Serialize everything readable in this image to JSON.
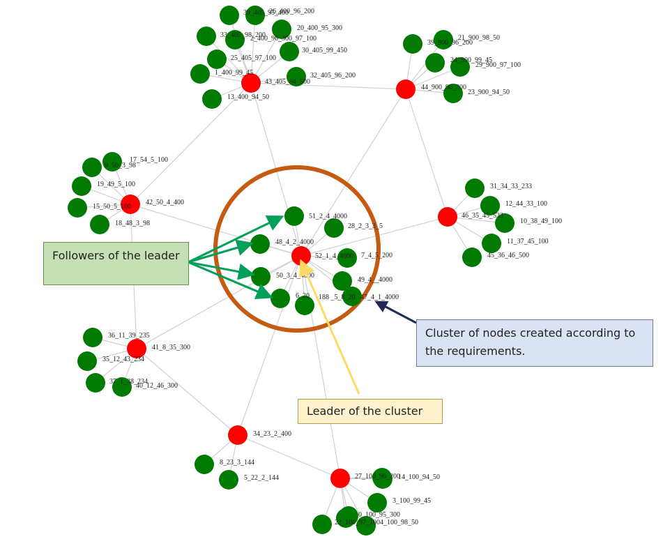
{
  "colors": {
    "leader": "#ff0000",
    "follower": "#007a00",
    "edge": "#d0d0d0",
    "cluster_ring": "#c55a11",
    "arrow_green": "#00a05a",
    "arrow_yellow": "#ffd965",
    "arrow_navy": "#1f2a55"
  },
  "callouts": {
    "followers": "Followers of the leader",
    "cluster": "Cluster of nodes created according to the requirements.",
    "leader": "Leader of the cluster"
  },
  "nodes": [
    {
      "id": "52_1_4_4000",
      "role": "leader",
      "label": "52_1_4_4000"
    },
    {
      "id": "51_2_4_4000",
      "role": "follower",
      "label": "51_2_4_4000"
    },
    {
      "id": "28_2_3_3_5",
      "role": "follower",
      "label": "28_2_3_3_5"
    },
    {
      "id": "48_4_2_4000",
      "role": "follower",
      "label": "48_4_2_4000"
    },
    {
      "id": "7_4_5_200",
      "role": "follower",
      "label": "7_4_5_200"
    },
    {
      "id": "50_3_4_4000",
      "role": "follower",
      "label": "50_3_4_4000"
    },
    {
      "id": "49_4_1_4000",
      "role": "follower",
      "label": "49_4__4000"
    },
    {
      "id": "6_20_188",
      "role": "follower",
      "label": "6_20"
    },
    {
      "id": "5_5_8_20",
      "role": "follower",
      "label": "188 _5_8_20"
    },
    {
      "id": "47_4_1_4000",
      "role": "follower",
      "label": "47_4_1_4000"
    },
    {
      "id": "43_405_94_500",
      "role": "leader",
      "label": "43_405_94_500"
    },
    {
      "id": "39_405_95_400",
      "role": "follower",
      "label": "39_405_95_400"
    },
    {
      "id": "26_400_96_200",
      "role": "follower",
      "label": "26_400_96_200"
    },
    {
      "id": "20_400_95_300",
      "role": "follower",
      "label": "20_400_95_300"
    },
    {
      "id": "33_405_98_200",
      "role": "follower",
      "label": "33_405_98_200"
    },
    {
      "id": "2_400_96_300",
      "role": "follower",
      "label": "2_400_96_300_97_100"
    },
    {
      "id": "30_405_99_450",
      "role": "follower",
      "label": "30_405_99_450"
    },
    {
      "id": "25_405_97_100",
      "role": "follower",
      "label": "25_405_97_100"
    },
    {
      "id": "1_400_99_45",
      "role": "follower",
      "label": "1_400_99_45"
    },
    {
      "id": "32_405_96_200",
      "role": "follower",
      "label": "32_405_96_200"
    },
    {
      "id": "13_400_94_50",
      "role": "follower",
      "label": "13_400_94_50"
    },
    {
      "id": "44_900_96_300",
      "role": "leader",
      "label": "44_900_96_300"
    },
    {
      "id": "39_900_96_200",
      "role": "follower",
      "label": "39_900_96_200"
    },
    {
      "id": "21_900_98_50",
      "role": "follower",
      "label": "21_900_98_50"
    },
    {
      "id": "24_900_99_45",
      "role": "follower",
      "label": "24_900_99_45"
    },
    {
      "id": "29_900_97_100",
      "role": "follower",
      "label": "29_900_97_100"
    },
    {
      "id": "23_900_94_50",
      "role": "follower",
      "label": "23_900_94_50"
    },
    {
      "id": "42_50_4_400",
      "role": "leader",
      "label": "42_50_4_400"
    },
    {
      "id": "9_50_3_98",
      "role": "follower",
      "label": "9_50_3_98"
    },
    {
      "id": "17_54_5_100",
      "role": "follower",
      "label": "17_54_5_100"
    },
    {
      "id": "19_49_5_100",
      "role": "follower",
      "label": "19_49_5_100"
    },
    {
      "id": "15_50_5_100",
      "role": "follower",
      "label": "15_50_5_100"
    },
    {
      "id": "18_48_3_98",
      "role": "follower",
      "label": "18_48_3_98"
    },
    {
      "id": "46_35_45_533",
      "role": "leader",
      "label": "46_35_45_533"
    },
    {
      "id": "31_34_33_233",
      "role": "follower",
      "label": "31_34_33_233"
    },
    {
      "id": "12_44_33_100",
      "role": "follower",
      "label": "12_44_33_100"
    },
    {
      "id": "10_38_49_100",
      "role": "follower",
      "label": "10_38_49_100"
    },
    {
      "id": "11_37_45_100",
      "role": "follower",
      "label": "11_37_45_100"
    },
    {
      "id": "45_36_46_500",
      "role": "follower",
      "label": "45_36_46_500"
    },
    {
      "id": "41_8_35_300",
      "role": "leader",
      "label": "41_8_35_300"
    },
    {
      "id": "36_11_39_235",
      "role": "follower",
      "label": "36_11_39_235"
    },
    {
      "id": "35_12_43_234",
      "role": "follower",
      "label": "35_12_43_234"
    },
    {
      "id": "37_1_38_234",
      "role": "follower",
      "label": "37_1_38_234"
    },
    {
      "id": "40_12_46_300",
      "role": "follower",
      "label": "40_12_46_300"
    },
    {
      "id": "34_23_2_400",
      "role": "leader",
      "label": "34_23_2_400"
    },
    {
      "id": "8_23_3_144",
      "role": "follower",
      "label": "8_23_3_144"
    },
    {
      "id": "5_22_2_144",
      "role": "follower",
      "label": "5_22_2_144"
    },
    {
      "id": "27_100_96_200",
      "role": "leader",
      "label": "27_100_96_200"
    },
    {
      "id": "14_100_94_50",
      "role": "follower",
      "label": "14_100_94_50"
    },
    {
      "id": "3_100_99_45",
      "role": "follower",
      "label": "3_100_99_45"
    },
    {
      "id": "0_100_95_300",
      "role": "follower",
      "label": "0_100_95_300"
    },
    {
      "id": "22_100_97_100",
      "role": "follower",
      "label": "22_100_97_100"
    },
    {
      "id": "4_100_98_50",
      "role": "follower",
      "label": "4_100_98_50"
    },
    {
      "id": "16_100_96_200",
      "role": "follower",
      "label": ""
    },
    {
      "id": "38_100_99_45",
      "role": "follower",
      "label": ""
    }
  ],
  "edges": [
    [
      "52_1_4_4000",
      "51_2_4_4000"
    ],
    [
      "52_1_4_4000",
      "28_2_3_3_5"
    ],
    [
      "52_1_4_4000",
      "48_4_2_4000"
    ],
    [
      "52_1_4_4000",
      "7_4_5_200"
    ],
    [
      "52_1_4_4000",
      "50_3_4_4000"
    ],
    [
      "52_1_4_4000",
      "49_4_1_4000"
    ],
    [
      "52_1_4_4000",
      "6_20_188"
    ],
    [
      "52_1_4_4000",
      "5_5_8_20"
    ],
    [
      "52_1_4_4000",
      "47_4_1_4000"
    ],
    [
      "52_1_4_4000",
      "43_405_94_500"
    ],
    [
      "52_1_4_4000",
      "44_900_96_300"
    ],
    [
      "52_1_4_4000",
      "42_50_4_400"
    ],
    [
      "52_1_4_4000",
      "46_35_45_533"
    ],
    [
      "52_1_4_4000",
      "41_8_35_300"
    ],
    [
      "52_1_4_4000",
      "34_23_2_400"
    ],
    [
      "52_1_4_4000",
      "27_100_96_200"
    ],
    [
      "43_405_94_500",
      "44_900_96_300"
    ],
    [
      "43_405_94_500",
      "42_50_4_400"
    ],
    [
      "44_900_96_300",
      "46_35_45_533"
    ],
    [
      "42_50_4_400",
      "41_8_35_300"
    ],
    [
      "41_8_35_300",
      "34_23_2_400"
    ],
    [
      "34_23_2_400",
      "27_100_96_200"
    ],
    [
      "43_405_94_500",
      "39_405_95_400"
    ],
    [
      "43_405_94_500",
      "26_400_96_200"
    ],
    [
      "43_405_94_500",
      "20_400_95_300"
    ],
    [
      "43_405_94_500",
      "33_405_98_200"
    ],
    [
      "43_405_94_500",
      "2_400_96_300"
    ],
    [
      "43_405_94_500",
      "30_405_99_450"
    ],
    [
      "43_405_94_500",
      "25_405_97_100"
    ],
    [
      "43_405_94_500",
      "1_400_99_45"
    ],
    [
      "43_405_94_500",
      "32_405_96_200"
    ],
    [
      "43_405_94_500",
      "13_400_94_50"
    ],
    [
      "44_900_96_300",
      "39_900_96_200"
    ],
    [
      "44_900_96_300",
      "21_900_98_50"
    ],
    [
      "44_900_96_300",
      "24_900_99_45"
    ],
    [
      "44_900_96_300",
      "29_900_97_100"
    ],
    [
      "44_900_96_300",
      "23_900_94_50"
    ],
    [
      "42_50_4_400",
      "9_50_3_98"
    ],
    [
      "42_50_4_400",
      "17_54_5_100"
    ],
    [
      "42_50_4_400",
      "19_49_5_100"
    ],
    [
      "42_50_4_400",
      "15_50_5_100"
    ],
    [
      "42_50_4_400",
      "18_48_3_98"
    ],
    [
      "46_35_45_533",
      "31_34_33_233"
    ],
    [
      "46_35_45_533",
      "12_44_33_100"
    ],
    [
      "46_35_45_533",
      "10_38_49_100"
    ],
    [
      "46_35_45_533",
      "11_37_45_100"
    ],
    [
      "46_35_45_533",
      "45_36_46_500"
    ],
    [
      "41_8_35_300",
      "36_11_39_235"
    ],
    [
      "41_8_35_300",
      "35_12_43_234"
    ],
    [
      "41_8_35_300",
      "37_1_38_234"
    ],
    [
      "41_8_35_300",
      "40_12_46_300"
    ],
    [
      "34_23_2_400",
      "8_23_3_144"
    ],
    [
      "34_23_2_400",
      "5_22_2_144"
    ],
    [
      "27_100_96_200",
      "14_100_94_50"
    ],
    [
      "27_100_96_200",
      "3_100_99_45"
    ],
    [
      "27_100_96_200",
      "0_100_95_300"
    ],
    [
      "27_100_96_200",
      "22_100_97_100"
    ],
    [
      "27_100_96_200",
      "4_100_98_50"
    ],
    [
      "27_100_96_200",
      "16_100_96_200"
    ],
    [
      "27_100_96_200",
      "38_100_99_45"
    ]
  ]
}
